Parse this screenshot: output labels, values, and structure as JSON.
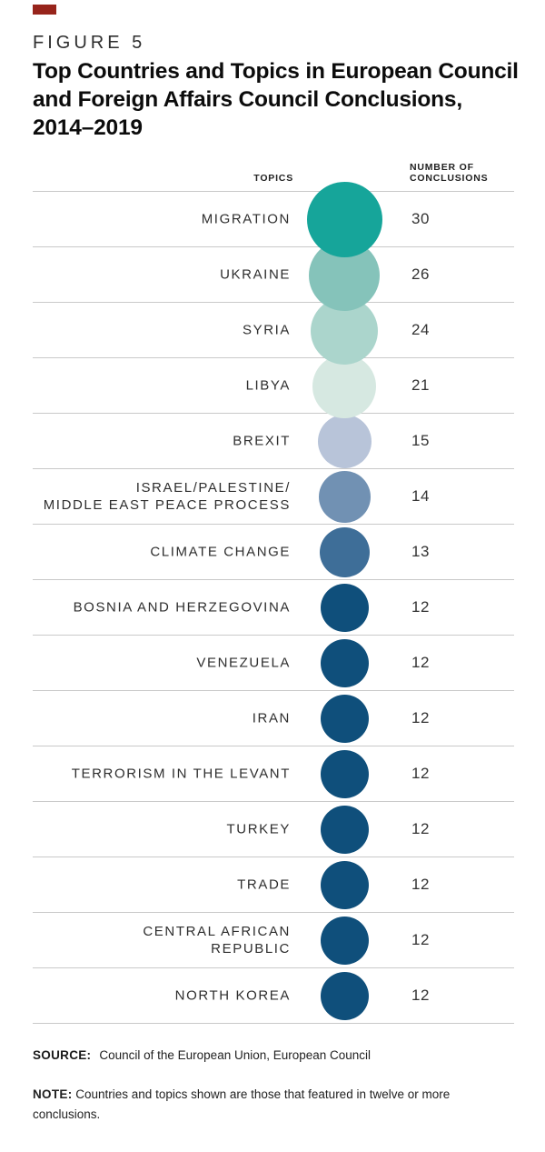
{
  "figure": {
    "label": "FIGURE 5",
    "title_lines": [
      "Top Countries and Topics in European Council",
      "and Foreign Affairs Council Conclusions,",
      "2014–2019"
    ]
  },
  "table_headers": {
    "topics": "TOPICS",
    "conclusions": "NUMBER OF\nCONCLUSIONS"
  },
  "chart_data": {
    "type": "table",
    "title": "Top Countries and Topics in European Council and Foreign Affairs Council Conclusions, 2014–2019",
    "columns": [
      "TOPICS",
      "NUMBER OF CONCLUSIONS"
    ],
    "encoding": "bubble area and color scale with number of conclusions",
    "value_range": [
      12,
      30
    ],
    "rows": [
      {
        "topic": "MIGRATION",
        "value": 30,
        "color": "#16a59a"
      },
      {
        "topic": "UKRAINE",
        "value": 26,
        "color": "#85c3ba"
      },
      {
        "topic": "SYRIA",
        "value": 24,
        "color": "#abd5cc"
      },
      {
        "topic": "LIBYA",
        "value": 21,
        "color": "#d6e8e1"
      },
      {
        "topic": "BREXIT",
        "value": 15,
        "color": "#b8c4d9"
      },
      {
        "topic": "ISRAEL/PALESTINE/\nMIDDLE EAST PEACE PROCESS",
        "value": 14,
        "color": "#7191b3"
      },
      {
        "topic": "CLIMATE CHANGE",
        "value": 13,
        "color": "#3e6e98"
      },
      {
        "topic": "BOSNIA AND HERZEGOVINA",
        "value": 12,
        "color": "#0f4f7b"
      },
      {
        "topic": "VENEZUELA",
        "value": 12,
        "color": "#0f4f7b"
      },
      {
        "topic": "IRAN",
        "value": 12,
        "color": "#0f4f7b"
      },
      {
        "topic": "TERRORISM IN THE LEVANT",
        "value": 12,
        "color": "#0f4f7b"
      },
      {
        "topic": "TURKEY",
        "value": 12,
        "color": "#0f4f7b"
      },
      {
        "topic": "TRADE",
        "value": 12,
        "color": "#0f4f7b"
      },
      {
        "topic": "CENTRAL AFRICAN\nREPUBLIC",
        "value": 12,
        "color": "#0f4f7b"
      },
      {
        "topic": "NORTH KOREA",
        "value": 12,
        "color": "#0f4f7b"
      }
    ]
  },
  "footer": {
    "source_label": "SOURCE:",
    "source_text": "Council of the European Union, European Council",
    "note_label": "NOTE:",
    "note_text": "Countries and topics shown are those that featured in twelve or more conclusions."
  },
  "colors": {
    "accent_red": "#97241b",
    "divider": "#c9c9c9",
    "bubble_max": "#16a59a",
    "bubble_min": "#0f4f7b"
  }
}
